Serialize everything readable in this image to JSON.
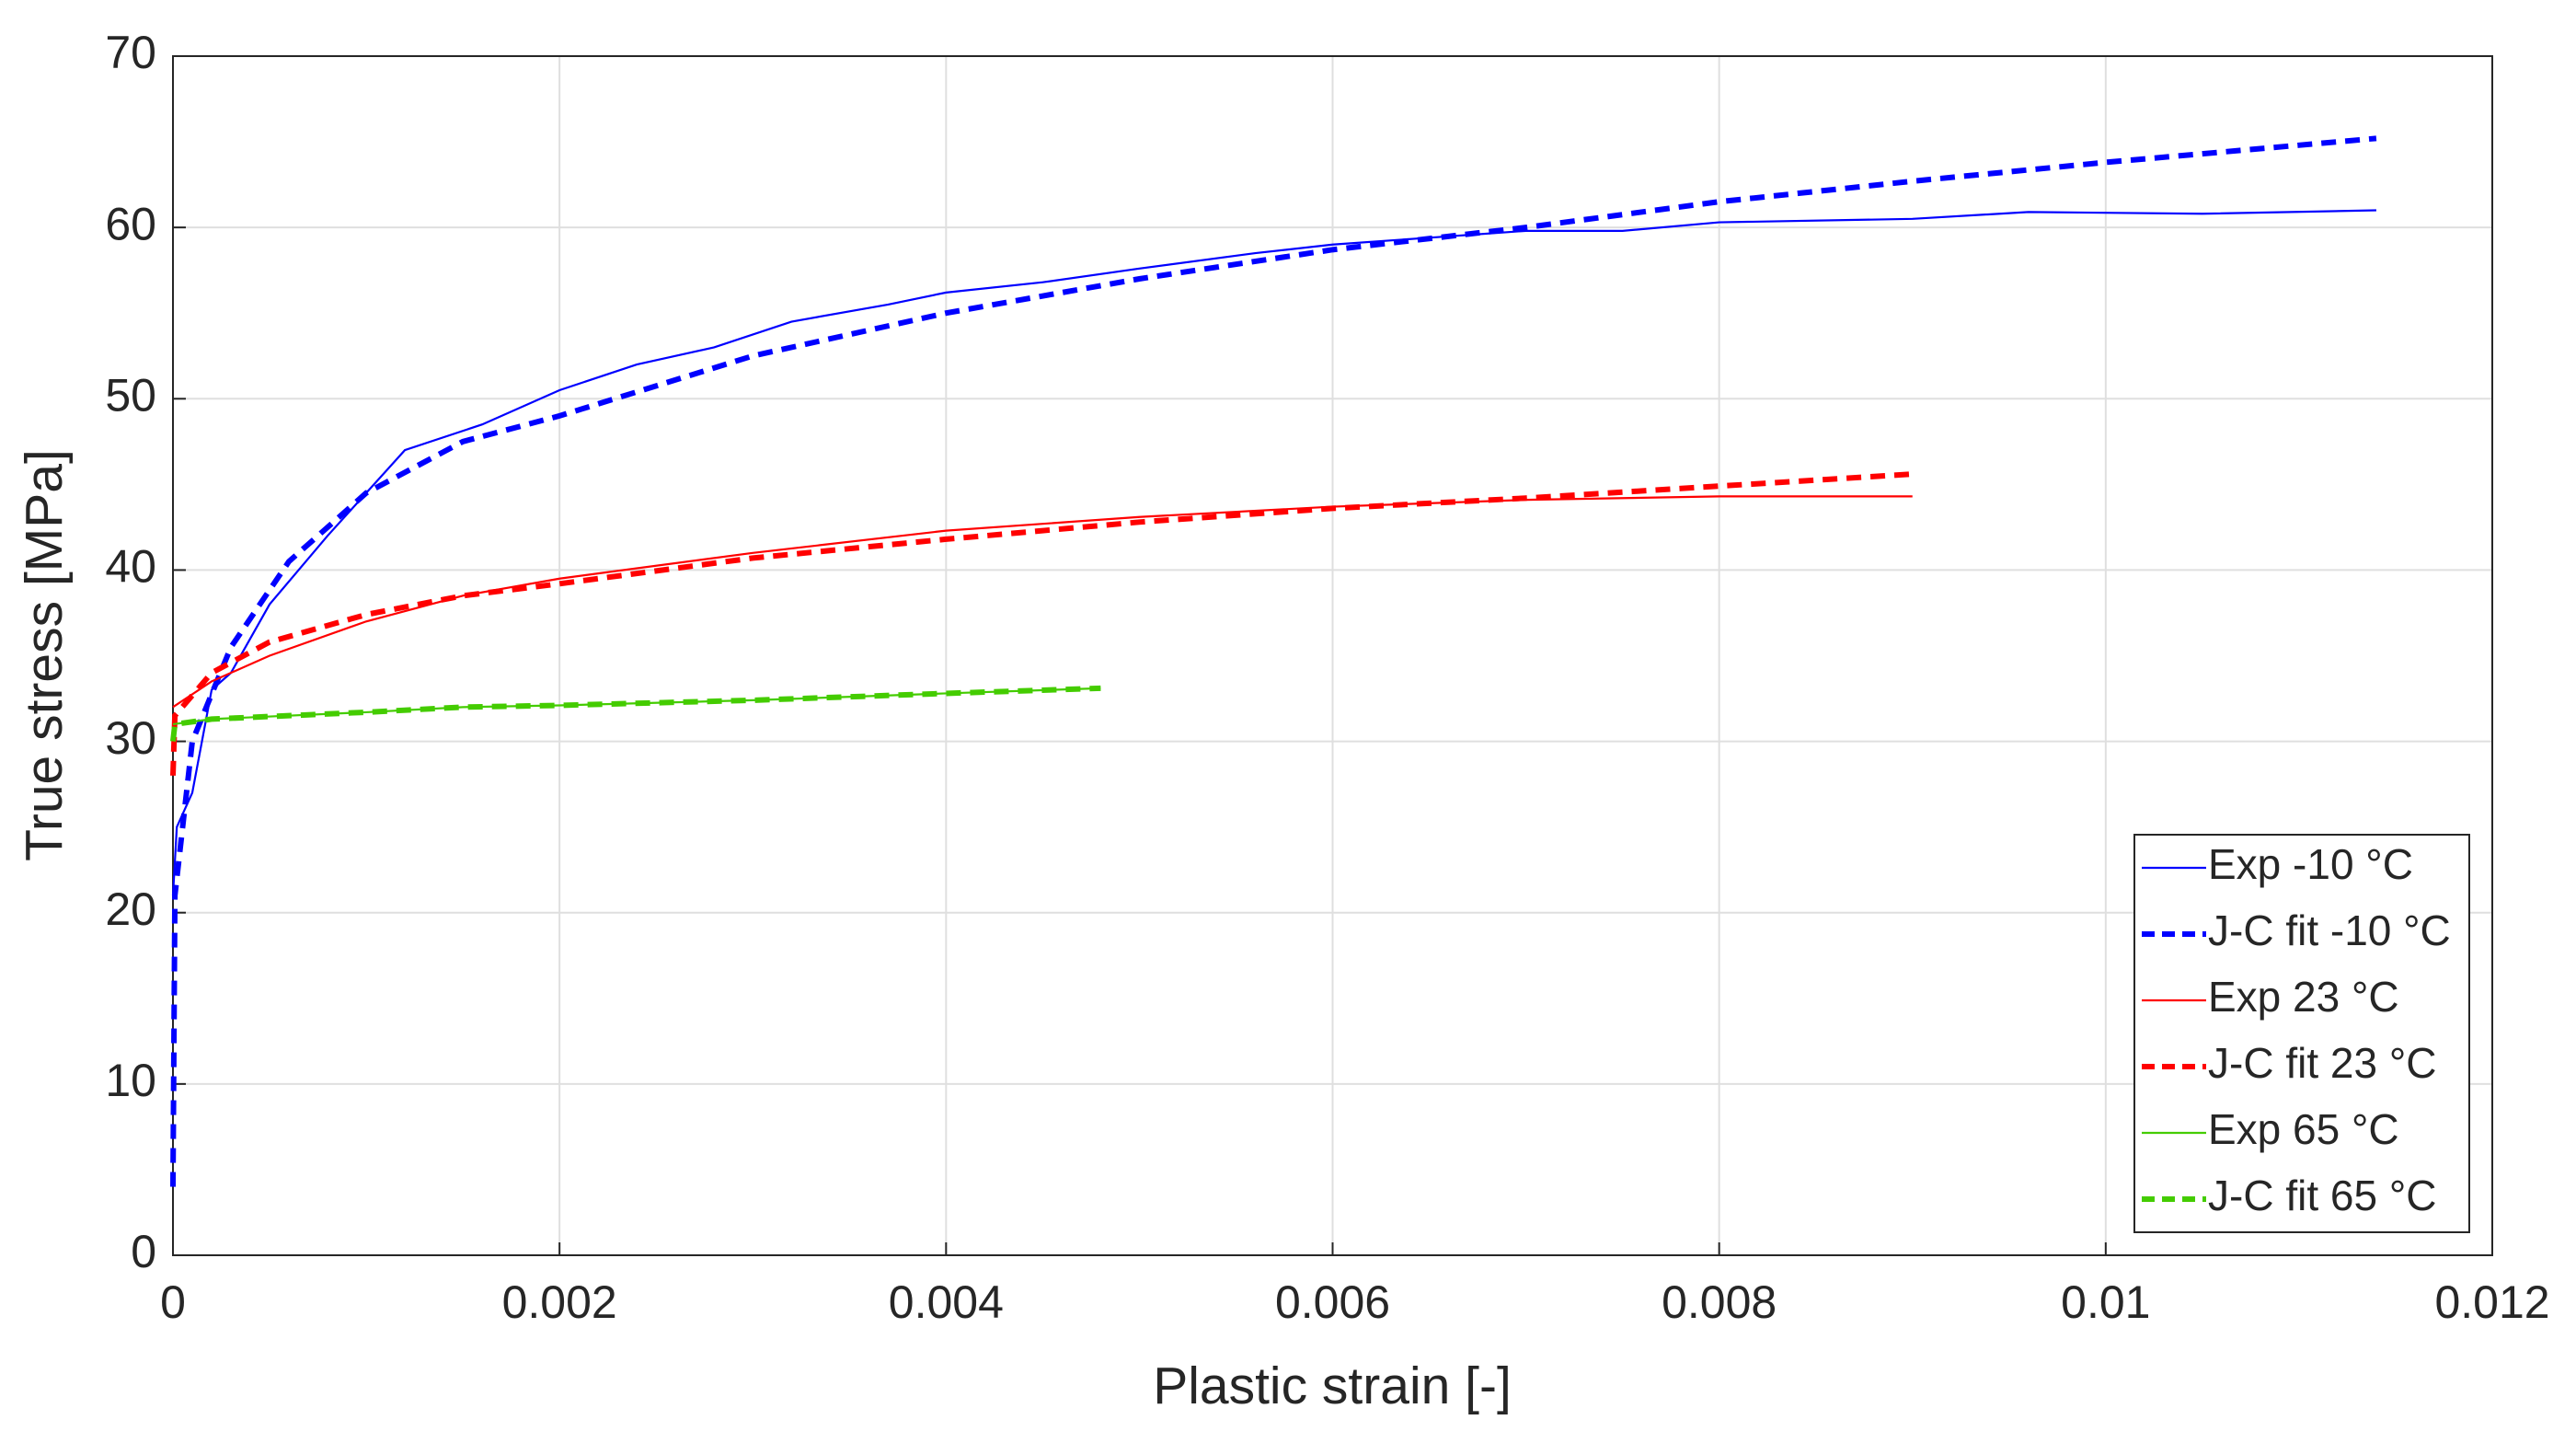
{
  "chart_data": {
    "type": "line",
    "xlabel": "Plastic strain [-]",
    "ylabel": "True stress [MPa]",
    "xlim": [
      0,
      0.012
    ],
    "xticks": [
      0,
      0.002,
      0.004,
      0.006,
      0.008,
      0.01,
      0.012
    ],
    "ylim": [
      0,
      70
    ],
    "yticks": [
      0,
      10,
      20,
      30,
      40,
      50,
      60,
      70
    ],
    "grid": true,
    "legend_position": "lower right",
    "series": [
      {
        "name": "Exp -10 °C",
        "color": "#0000ff",
        "line_style": "solid",
        "x": [
          0,
          2e-05,
          0.0001,
          0.0002,
          0.0003,
          0.0005,
          0.0008,
          0.001,
          0.0012,
          0.0016,
          0.002,
          0.0024,
          0.0028,
          0.0032,
          0.0037,
          0.004,
          0.0045,
          0.005,
          0.0056,
          0.006,
          0.0065,
          0.007,
          0.0075,
          0.008,
          0.009,
          0.0096,
          0.0105,
          0.0114
        ],
        "values": [
          21,
          25,
          27,
          33,
          34,
          38,
          42,
          44.5,
          47,
          48.5,
          50.5,
          52,
          53,
          54.5,
          55.5,
          56.2,
          56.8,
          57.6,
          58.5,
          59,
          59.4,
          59.8,
          59.8,
          60.3,
          60.5,
          60.9,
          60.8,
          61
        ]
      },
      {
        "name": "J-C fit -10 °C",
        "color": "#0000ff",
        "line_style": "dashed",
        "x": [
          0,
          1e-05,
          0.0001,
          0.0003,
          0.0006,
          0.001,
          0.0015,
          0.002,
          0.003,
          0.004,
          0.005,
          0.006,
          0.007,
          0.008,
          0.009,
          0.01,
          0.0114
        ],
        "values": [
          4,
          21,
          30,
          35.5,
          40.5,
          44.5,
          47.5,
          49,
          52.5,
          55,
          57,
          58.7,
          60,
          61.5,
          62.7,
          63.8,
          65.2
        ]
      },
      {
        "name": "Exp 23 °C",
        "color": "#ff0000",
        "line_style": "solid",
        "x": [
          0,
          0.0002,
          0.0005,
          0.001,
          0.0015,
          0.002,
          0.003,
          0.004,
          0.005,
          0.006,
          0.007,
          0.008,
          0.009
        ],
        "values": [
          32,
          33.5,
          35,
          37,
          38.5,
          39.5,
          41,
          42.3,
          43.1,
          43.7,
          44.1,
          44.3,
          44.3
        ]
      },
      {
        "name": "J-C fit 23 °C",
        "color": "#ff0000",
        "line_style": "dashed",
        "x": [
          0,
          1e-05,
          0.0002,
          0.0005,
          0.001,
          0.0015,
          0.002,
          0.003,
          0.004,
          0.005,
          0.006,
          0.007,
          0.008,
          0.009
        ],
        "values": [
          28,
          31.5,
          34,
          35.8,
          37.4,
          38.5,
          39.2,
          40.7,
          41.8,
          42.8,
          43.6,
          44.2,
          44.9,
          45.6
        ]
      },
      {
        "name": "Exp 65 °C",
        "color": "#44cc00",
        "line_style": "solid",
        "x": [
          0,
          0.0002,
          0.001,
          0.0015,
          0.002,
          0.003,
          0.004,
          0.0048
        ],
        "values": [
          31,
          31.3,
          31.7,
          32,
          32.1,
          32.4,
          32.8,
          33.1
        ]
      },
      {
        "name": "J-C fit 65 °C",
        "color": "#44cc00",
        "line_style": "dashed",
        "x": [
          0,
          1e-05,
          0.0002,
          0.001,
          0.0015,
          0.002,
          0.003,
          0.004,
          0.0048
        ],
        "values": [
          30,
          31,
          31.3,
          31.7,
          32,
          32.1,
          32.4,
          32.8,
          33.1
        ]
      }
    ]
  }
}
